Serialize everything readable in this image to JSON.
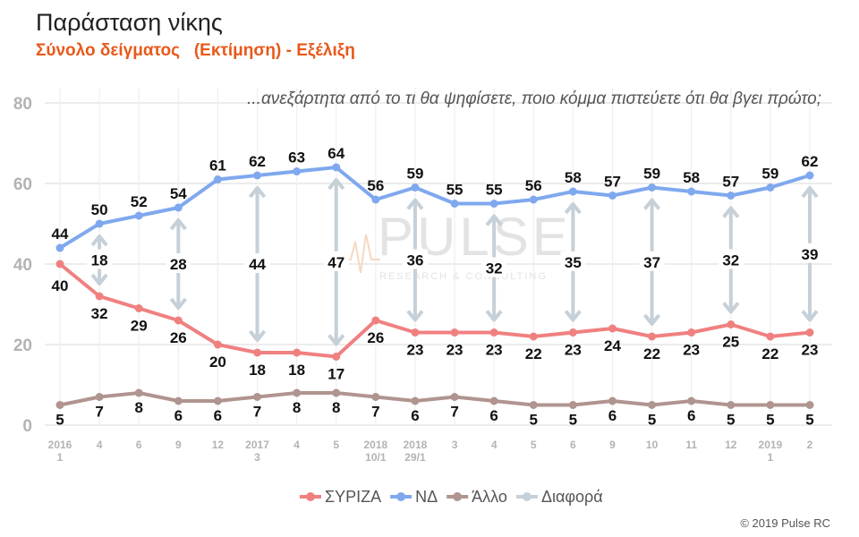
{
  "header": {
    "title": "Παράσταση νίκης",
    "subtitle": "Σύνολο δείγματος   (Εκτίμηση) - Εξέλιξη",
    "question": "...ανεξάρτητα από το τι θα ψηφίσετε, ποιο κόμμα πιστεύετε ότι θα βγει πρώτο;"
  },
  "watermark": {
    "brand": "PULSE",
    "tagline": "RESEARCH & CONSULTING"
  },
  "footer": {
    "copyright": "© 2019 Pulse RC"
  },
  "colors": {
    "syriza": "#f08080",
    "nd": "#7fa8ee",
    "allo": "#b0948f",
    "diff": "#c6d0d8",
    "grid": "#e6e6e6"
  },
  "chart_data": {
    "type": "line",
    "ylim": [
      0,
      80
    ],
    "yticks": [
      0,
      20,
      40,
      60,
      80
    ],
    "grid": true,
    "legend_position": "bottom",
    "x_labels": [
      [
        "2016",
        "1"
      ],
      [
        "4"
      ],
      [
        "6"
      ],
      [
        "9"
      ],
      [
        "12"
      ],
      [
        "2017",
        "3"
      ],
      [
        "4"
      ],
      [
        "5"
      ],
      [
        "2018",
        "10/1"
      ],
      [
        "2018",
        "29/1"
      ],
      [
        "3"
      ],
      [
        "4"
      ],
      [
        "5"
      ],
      [
        "6"
      ],
      [
        "9"
      ],
      [
        "10"
      ],
      [
        "11"
      ],
      [
        "12"
      ],
      [
        "2019",
        "1"
      ],
      [
        "2"
      ]
    ],
    "series": [
      {
        "name": "ΣΥΡΙΖΑ",
        "key": "syriza",
        "values": [
          40,
          32,
          29,
          26,
          20,
          18,
          18,
          17,
          26,
          23,
          23,
          23,
          22,
          23,
          24,
          22,
          23,
          25,
          22,
          23
        ]
      },
      {
        "name": "ΝΔ",
        "key": "nd",
        "values": [
          44,
          50,
          52,
          54,
          61,
          62,
          63,
          64,
          56,
          59,
          55,
          55,
          56,
          58,
          57,
          59,
          58,
          57,
          59,
          62
        ]
      },
      {
        "name": "Άλλο",
        "key": "allo",
        "values": [
          5,
          7,
          8,
          6,
          6,
          7,
          8,
          8,
          7,
          6,
          7,
          6,
          5,
          5,
          6,
          5,
          6,
          5,
          5,
          5
        ]
      },
      {
        "name": "Διαφορά",
        "key": "diff",
        "values": []
      }
    ],
    "differences": [
      {
        "index": 1,
        "value": 18
      },
      {
        "index": 3,
        "value": 28
      },
      {
        "index": 5,
        "value": 44
      },
      {
        "index": 7,
        "value": 47
      },
      {
        "index": 9,
        "value": 36
      },
      {
        "index": 11,
        "value": 32
      },
      {
        "index": 13,
        "value": 35
      },
      {
        "index": 15,
        "value": 37
      },
      {
        "index": 17,
        "value": 32
      },
      {
        "index": 19,
        "value": 39
      }
    ]
  }
}
